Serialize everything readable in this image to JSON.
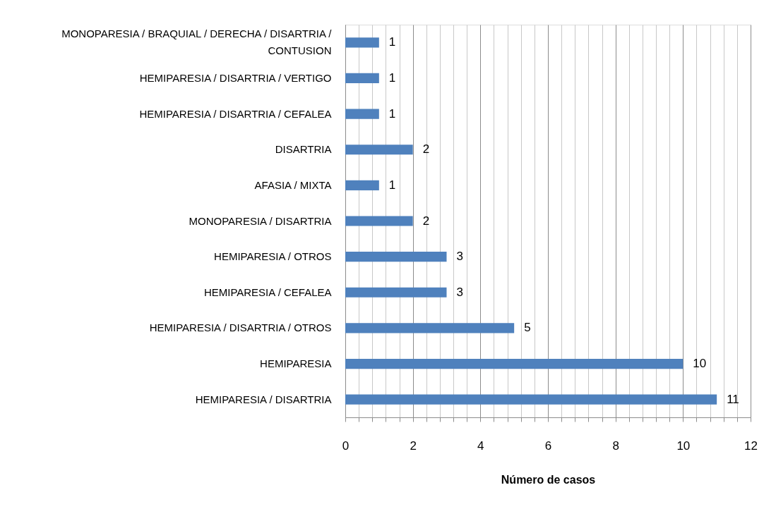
{
  "chart_data": {
    "type": "bar",
    "orientation": "horizontal",
    "xlabel": "Número de casos",
    "categories": [
      "MONOPARESIA / BRAQUIAL / DERECHA / DISARTRIA / CONTUSION",
      "HEMIPARESIA / DISARTRIA / VERTIGO",
      "HEMIPARESIA / DISARTRIA / CEFALEA",
      "DISARTRIA",
      "AFASIA / MIXTA",
      "MONOPARESIA / DISARTRIA",
      "HEMIPARESIA / OTROS",
      "HEMIPARESIA / CEFALEA",
      "HEMIPARESIA / DISARTRIA / OTROS",
      "HEMIPARESIA",
      "HEMIPARESIA / DISARTRIA"
    ],
    "values": [
      1,
      1,
      1,
      2,
      1,
      2,
      3,
      3,
      5,
      10,
      11
    ],
    "color": "#4f81bd",
    "data_labels": true,
    "grid": "x",
    "xlim": [
      0,
      12
    ],
    "xticks": [
      0,
      {
        "value": 0.4,
        "label": null
      },
      {
        "value": 0.8,
        "label": null
      },
      {
        "value": 1.2,
        "label": null
      },
      {
        "value": 1.6,
        "label": null
      },
      2,
      {
        "value": 2.4,
        "label": null
      },
      {
        "value": 2.8,
        "label": null
      },
      {
        "value": 3.2,
        "label": null
      },
      {
        "value": 3.6,
        "label": null
      },
      4,
      {
        "value": 4.4,
        "label": null
      },
      {
        "value": 4.8,
        "label": null
      },
      {
        "value": 5.2,
        "label": null
      },
      {
        "value": 5.6,
        "label": null
      },
      6,
      {
        "value": 6.4,
        "label": null
      },
      {
        "value": 6.8,
        "label": null
      },
      {
        "value": 7.2,
        "label": null
      },
      {
        "value": 7.6,
        "label": null
      },
      8,
      {
        "value": 8.4,
        "label": null
      },
      {
        "value": 8.8,
        "label": null
      },
      {
        "value": 9.2,
        "label": null
      },
      {
        "value": 9.6,
        "label": null
      },
      10,
      {
        "value": 10.4,
        "label": null
      },
      {
        "value": 10.8,
        "label": null
      },
      {
        "value": 11.2,
        "label": null
      },
      {
        "value": 11.6,
        "label": null
      },
      12
    ]
  }
}
